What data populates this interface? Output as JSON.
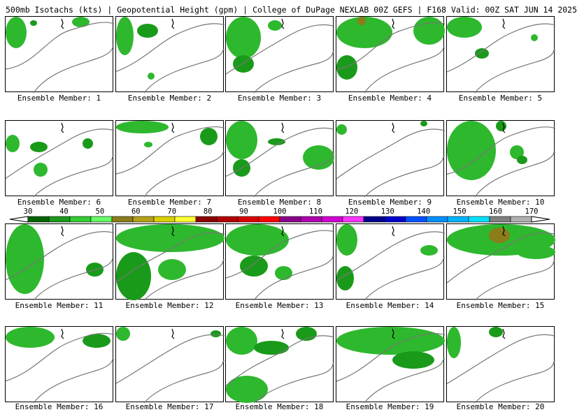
{
  "header": {
    "title": "500mb Isotachs (kts) | Geopotential Height (gpm) | College of DuPage NEXLAB",
    "run": "00Z GEFS | F168 Valid: 00Z SAT JUN 14 2025"
  },
  "members": [
    {
      "label": "Ensemble Member: 1"
    },
    {
      "label": "Ensemble Member: 2"
    },
    {
      "label": "Ensemble Member: 3"
    },
    {
      "label": "Ensemble Member: 4"
    },
    {
      "label": "Ensemble Member: 5"
    },
    {
      "label": "Ensemble Member: 6"
    },
    {
      "label": "Ensemble Member: 7"
    },
    {
      "label": "Ensemble Member: 8"
    },
    {
      "label": "Ensemble Member: 9"
    },
    {
      "label": "Ensemble Member: 10"
    },
    {
      "label": "Ensemble Member: 11"
    },
    {
      "label": "Ensemble Member: 12"
    },
    {
      "label": "Ensemble Member: 13"
    },
    {
      "label": "Ensemble Member: 14"
    },
    {
      "label": "Ensemble Member: 15"
    },
    {
      "label": "Ensemble Member: 16"
    },
    {
      "label": "Ensemble Member: 17"
    },
    {
      "label": "Ensemble Member: 18"
    },
    {
      "label": "Ensemble Member: 19"
    },
    {
      "label": "Ensemble Member: 20"
    }
  ],
  "colorbar": {
    "ticks": [
      "30",
      "40",
      "50",
      "60",
      "70",
      "80",
      "90",
      "100",
      "110",
      "120",
      "130",
      "140",
      "150",
      "160",
      "170"
    ],
    "colors": [
      "#006400",
      "#1a9a1a",
      "#33cc33",
      "#66ff66",
      "#8b7d1a",
      "#b5a018",
      "#d8d000",
      "#ffff33",
      "#8b0000",
      "#b30000",
      "#d80000",
      "#ff0000",
      "#8b008b",
      "#b000b0",
      "#d000d0",
      "#ff33ff",
      "#00008b",
      "#0000cd",
      "#0050ff",
      "#0090ff",
      "#00b4ff",
      "#00e0ff",
      "#808080",
      "#b0b0b0"
    ]
  }
}
